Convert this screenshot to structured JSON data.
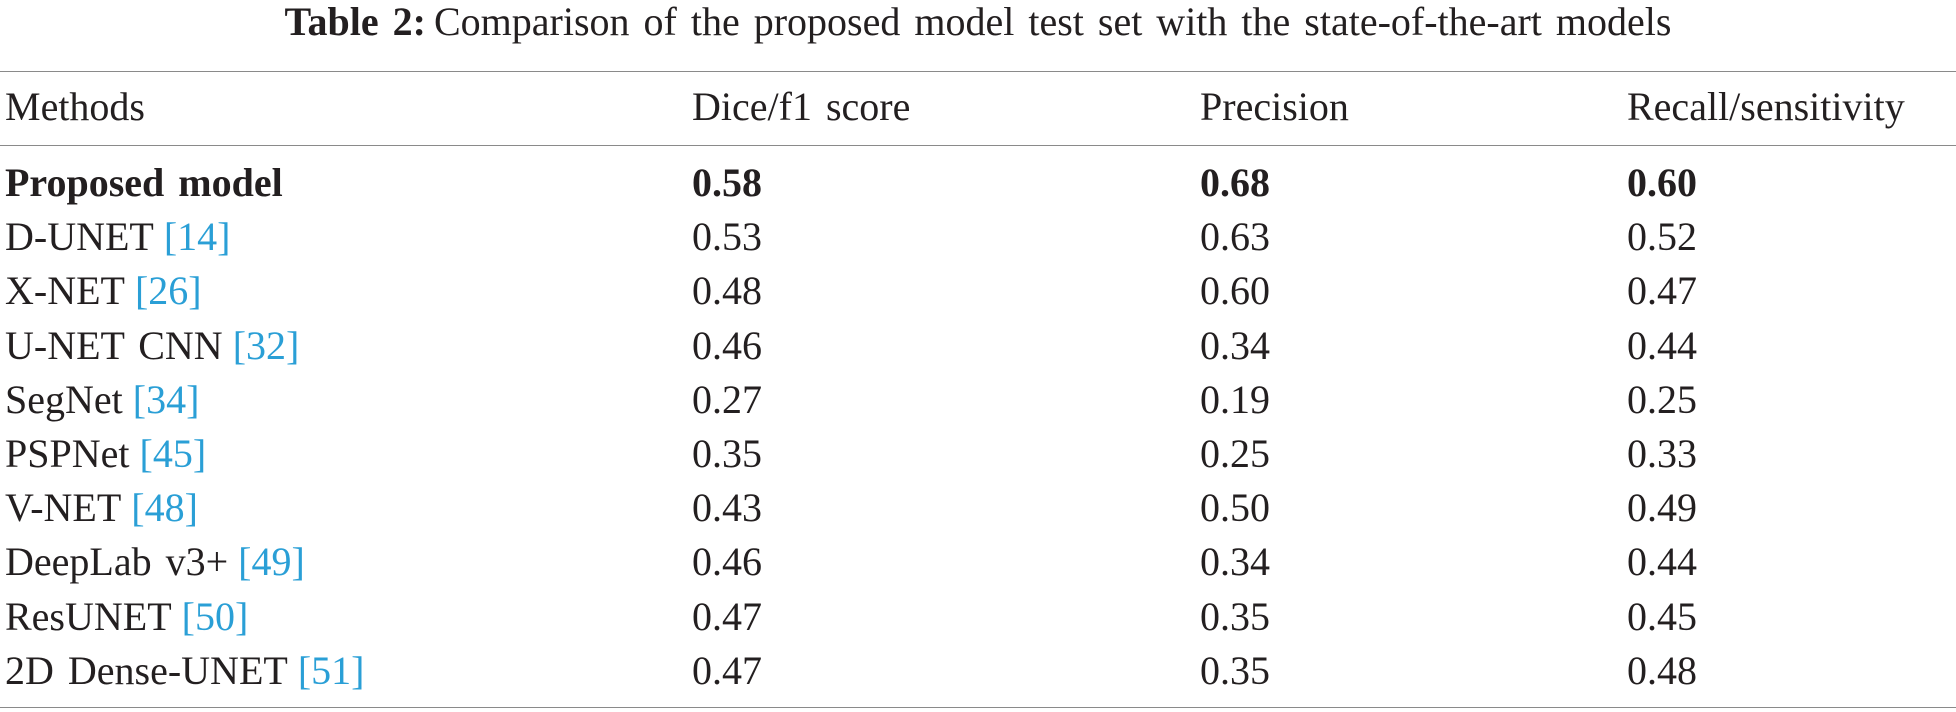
{
  "caption": {
    "label": "Table 2:",
    "text": "Comparison of the proposed model test set with the state-of-the-art models"
  },
  "table": {
    "header": [
      "Methods",
      "Dice/f1 score",
      "Precision",
      "Recall/sensitivity"
    ],
    "rows": [
      {
        "method": "Proposed model",
        "ref": null,
        "values": [
          "0.58",
          "0.68",
          "0.60"
        ],
        "bold": true
      },
      {
        "method": "D-UNET",
        "ref": "[14]",
        "values": [
          "0.53",
          "0.63",
          "0.52"
        ],
        "bold": false
      },
      {
        "method": "X-NET",
        "ref": "[26]",
        "values": [
          "0.48",
          "0.60",
          "0.47"
        ],
        "bold": false
      },
      {
        "method": "U-NET CNN",
        "ref": "[32]",
        "values": [
          "0.46",
          "0.34",
          "0.44"
        ],
        "bold": false
      },
      {
        "method": "SegNet",
        "ref": "[34]",
        "values": [
          "0.27",
          "0.19",
          "0.25"
        ],
        "bold": false
      },
      {
        "method": "PSPNet",
        "ref": "[45]",
        "values": [
          "0.35",
          "0.25",
          "0.33"
        ],
        "bold": false
      },
      {
        "method": "V-NET",
        "ref": "[48]",
        "values": [
          "0.43",
          "0.50",
          "0.49"
        ],
        "bold": false
      },
      {
        "method": "DeepLab v3+",
        "ref": "[49]",
        "values": [
          "0.46",
          "0.34",
          "0.44"
        ],
        "bold": false
      },
      {
        "method": "ResUNET",
        "ref": "[50]",
        "values": [
          "0.47",
          "0.35",
          "0.45"
        ],
        "bold": false
      },
      {
        "method": "2D Dense-UNET",
        "ref": "[51]",
        "values": [
          "0.47",
          "0.35",
          "0.48"
        ],
        "bold": false
      }
    ]
  }
}
